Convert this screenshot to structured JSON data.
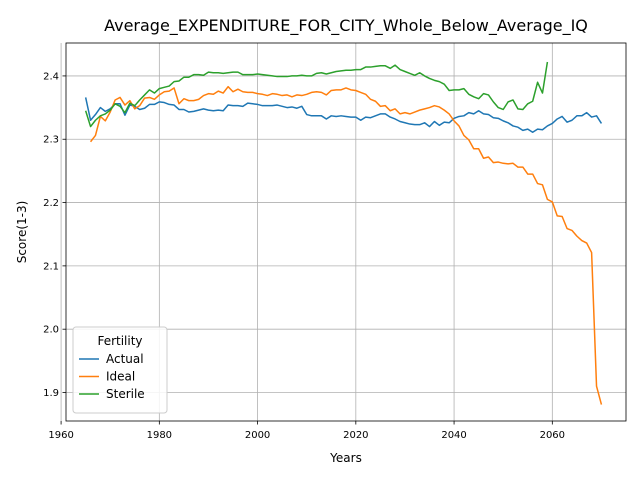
{
  "chart_data": {
    "type": "line",
    "title": "Average_EXPENDITURE_FOR_CITY_Whole_Below_Average_IQ",
    "xlabel": "Years",
    "ylabel": "Score(1-3)",
    "xlim": [
      1961,
      2075
    ],
    "ylim": [
      1.855,
      2.452
    ],
    "xticks": [
      1960,
      1980,
      2000,
      2020,
      2040,
      2060
    ],
    "yticks": [
      1.9,
      2.0,
      2.1,
      2.2,
      2.3,
      2.4
    ],
    "xtick_labels": [
      "1960",
      "1980",
      "2000",
      "2020",
      "2040",
      "2060"
    ],
    "ytick_labels": [
      "1.9",
      "2.0",
      "2.1",
      "2.2",
      "2.3",
      "2.4"
    ],
    "grid": true,
    "legend": {
      "title": "Fertility",
      "position": "lower-left"
    },
    "series": [
      {
        "name": "Actual",
        "color": "#1f77b4",
        "x": [
          1965,
          1966,
          1967,
          1968,
          1969,
          1970,
          1971,
          1972,
          1973,
          1974,
          1975,
          1976,
          1977,
          1978,
          1979,
          1980,
          1981,
          1982,
          1983,
          1984,
          1985,
          1986,
          1987,
          1988,
          1989,
          1990,
          1991,
          1992,
          1993,
          1994,
          1995,
          1996,
          1997,
          1998,
          1999,
          2000,
          2001,
          2002,
          2003,
          2004,
          2005,
          2006,
          2007,
          2008,
          2009,
          2010,
          2011,
          2012,
          2013,
          2014,
          2015,
          2016,
          2017,
          2018,
          2019,
          2020,
          2021,
          2022,
          2023,
          2024,
          2025,
          2026,
          2027,
          2028,
          2029,
          2030,
          2031,
          2032,
          2033,
          2034,
          2035,
          2036,
          2037,
          2038,
          2039,
          2040,
          2041,
          2042,
          2043,
          2044,
          2045,
          2046,
          2047,
          2048,
          2049,
          2050,
          2051,
          2052,
          2053,
          2054,
          2055,
          2056,
          2057,
          2058,
          2059,
          2060,
          2061,
          2062,
          2063,
          2064,
          2065,
          2066,
          2067,
          2068,
          2069,
          2070
        ],
        "y": [
          2.366,
          2.33,
          2.339,
          2.35,
          2.344,
          2.348,
          2.356,
          2.356,
          2.338,
          2.354,
          2.352,
          2.347,
          2.349,
          2.355,
          2.355,
          2.359,
          2.358,
          2.355,
          2.354,
          2.347,
          2.347,
          2.343,
          2.344,
          2.346,
          2.348,
          2.346,
          2.345,
          2.346,
          2.345,
          2.354,
          2.353,
          2.353,
          2.352,
          2.357,
          2.356,
          2.355,
          2.353,
          2.353,
          2.353,
          2.354,
          2.352,
          2.35,
          2.351,
          2.349,
          2.352,
          2.339,
          2.337,
          2.337,
          2.337,
          2.332,
          2.337,
          2.336,
          2.337,
          2.336,
          2.335,
          2.335,
          2.33,
          2.335,
          2.334,
          2.337,
          2.34,
          2.34,
          2.335,
          2.332,
          2.328,
          2.326,
          2.324,
          2.323,
          2.323,
          2.326,
          2.32,
          2.328,
          2.322,
          2.327,
          2.326,
          2.333,
          2.336,
          2.337,
          2.342,
          2.34,
          2.345,
          2.34,
          2.339,
          2.334,
          2.333,
          2.329,
          2.326,
          2.321,
          2.319,
          2.314,
          2.316,
          2.311,
          2.316,
          2.315,
          2.321,
          2.325,
          2.332,
          2.336,
          2.327,
          2.33,
          2.337,
          2.337,
          2.342,
          2.335,
          2.337,
          2.325
        ]
      },
      {
        "name": "Ideal",
        "color": "#ff7f0e",
        "x": [
          1966,
          1967,
          1968,
          1969,
          1970,
          1971,
          1972,
          1973,
          1974,
          1975,
          1976,
          1977,
          1978,
          1979,
          1980,
          1981,
          1982,
          1983,
          1984,
          1985,
          1986,
          1987,
          1988,
          1989,
          1990,
          1991,
          1992,
          1993,
          1994,
          1995,
          1996,
          1997,
          1998,
          1999,
          2000,
          2001,
          2002,
          2003,
          2004,
          2005,
          2006,
          2007,
          2008,
          2009,
          2010,
          2011,
          2012,
          2013,
          2014,
          2015,
          2016,
          2017,
          2018,
          2019,
          2020,
          2021,
          2022,
          2023,
          2024,
          2025,
          2026,
          2027,
          2028,
          2029,
          2030,
          2031,
          2032,
          2033,
          2034,
          2035,
          2036,
          2037,
          2038,
          2039,
          2040,
          2041,
          2042,
          2043,
          2044,
          2045,
          2046,
          2047,
          2048,
          2049,
          2050,
          2051,
          2052,
          2053,
          2054,
          2055,
          2056,
          2057,
          2058,
          2059,
          2060,
          2061,
          2062,
          2063,
          2064,
          2065,
          2066,
          2067,
          2068,
          2069,
          2070
        ],
        "y": [
          2.296,
          2.306,
          2.336,
          2.329,
          2.343,
          2.362,
          2.366,
          2.354,
          2.361,
          2.348,
          2.353,
          2.365,
          2.366,
          2.363,
          2.37,
          2.375,
          2.376,
          2.381,
          2.356,
          2.364,
          2.361,
          2.361,
          2.363,
          2.369,
          2.372,
          2.371,
          2.376,
          2.373,
          2.383,
          2.375,
          2.379,
          2.375,
          2.374,
          2.374,
          2.372,
          2.371,
          2.369,
          2.372,
          2.371,
          2.369,
          2.37,
          2.367,
          2.37,
          2.369,
          2.371,
          2.374,
          2.375,
          2.374,
          2.37,
          2.377,
          2.378,
          2.378,
          2.381,
          2.378,
          2.377,
          2.374,
          2.371,
          2.363,
          2.36,
          2.352,
          2.353,
          2.345,
          2.348,
          2.34,
          2.342,
          2.34,
          2.343,
          2.346,
          2.348,
          2.35,
          2.353,
          2.351,
          2.346,
          2.34,
          2.329,
          2.321,
          2.306,
          2.299,
          2.285,
          2.285,
          2.27,
          2.272,
          2.263,
          2.264,
          2.262,
          2.261,
          2.262,
          2.256,
          2.256,
          2.245,
          2.245,
          2.23,
          2.228,
          2.205,
          2.201,
          2.179,
          2.178,
          2.159,
          2.156,
          2.147,
          2.14,
          2.136,
          2.121,
          1.91,
          1.881
        ]
      },
      {
        "name": "Sterile",
        "color": "#2ca02c",
        "x": [
          1965,
          1966,
          1967,
          1968,
          1969,
          1970,
          1971,
          1972,
          1973,
          1974,
          1975,
          1976,
          1977,
          1978,
          1979,
          1980,
          1981,
          1982,
          1983,
          1984,
          1985,
          1986,
          1987,
          1988,
          1989,
          1990,
          1991,
          1992,
          1993,
          1994,
          1995,
          1996,
          1997,
          1998,
          1999,
          2000,
          2001,
          2002,
          2003,
          2004,
          2005,
          2006,
          2007,
          2008,
          2009,
          2010,
          2011,
          2012,
          2013,
          2014,
          2015,
          2016,
          2017,
          2018,
          2019,
          2020,
          2021,
          2022,
          2023,
          2024,
          2025,
          2026,
          2027,
          2028,
          2029,
          2030,
          2031,
          2032,
          2033,
          2034,
          2035,
          2036,
          2037,
          2038,
          2039,
          2040,
          2041,
          2042,
          2043,
          2044,
          2045,
          2046,
          2047,
          2048,
          2049,
          2050,
          2051,
          2052,
          2053,
          2054,
          2055,
          2056,
          2057,
          2058,
          2059
        ],
        "y": [
          2.345,
          2.32,
          2.33,
          2.337,
          2.34,
          2.346,
          2.356,
          2.352,
          2.342,
          2.357,
          2.353,
          2.362,
          2.37,
          2.378,
          2.373,
          2.38,
          2.382,
          2.384,
          2.391,
          2.392,
          2.398,
          2.398,
          2.402,
          2.402,
          2.401,
          2.406,
          2.405,
          2.405,
          2.404,
          2.405,
          2.406,
          2.406,
          2.402,
          2.402,
          2.402,
          2.403,
          2.402,
          2.401,
          2.4,
          2.399,
          2.399,
          2.399,
          2.4,
          2.4,
          2.401,
          2.4,
          2.4,
          2.404,
          2.405,
          2.403,
          2.405,
          2.407,
          2.408,
          2.409,
          2.409,
          2.41,
          2.41,
          2.414,
          2.414,
          2.415,
          2.416,
          2.416,
          2.412,
          2.417,
          2.41,
          2.407,
          2.404,
          2.401,
          2.405,
          2.4,
          2.396,
          2.393,
          2.391,
          2.387,
          2.377,
          2.378,
          2.378,
          2.38,
          2.371,
          2.367,
          2.364,
          2.372,
          2.37,
          2.359,
          2.35,
          2.347,
          2.359,
          2.362,
          2.348,
          2.347,
          2.356,
          2.36,
          2.39,
          2.373,
          2.422
        ]
      }
    ]
  }
}
